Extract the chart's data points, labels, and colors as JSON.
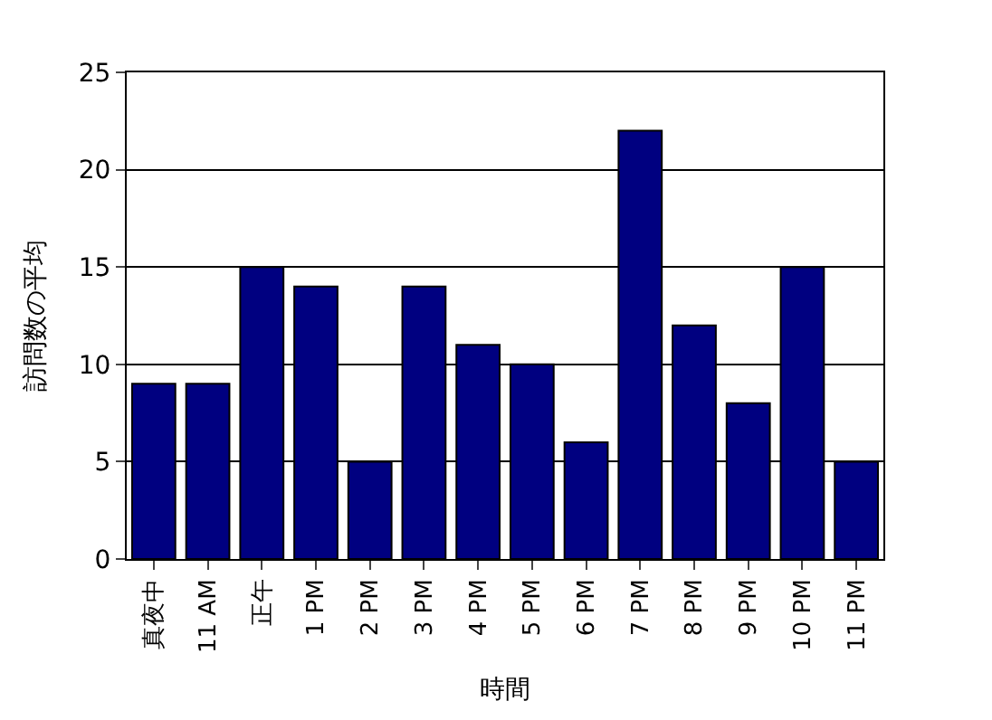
{
  "chart_data": {
    "type": "bar",
    "xlabel": "時間",
    "ylabel": "訪問数の平均",
    "categories": [
      "真夜中",
      "11 AM",
      "正午",
      "1 PM",
      "2 PM",
      "3 PM",
      "4 PM",
      "5 PM",
      "6 PM",
      "7 PM",
      "8 PM",
      "9 PM",
      "10 PM",
      "11 PM"
    ],
    "values": [
      9,
      9,
      15,
      14,
      5,
      14,
      11,
      10,
      6,
      22,
      12,
      8,
      15,
      5
    ],
    "color": "#000080",
    "ylim": [
      0,
      25
    ],
    "yticks": [
      0,
      5,
      10,
      15,
      20,
      25
    ],
    "grid": "y",
    "legend": false
  }
}
